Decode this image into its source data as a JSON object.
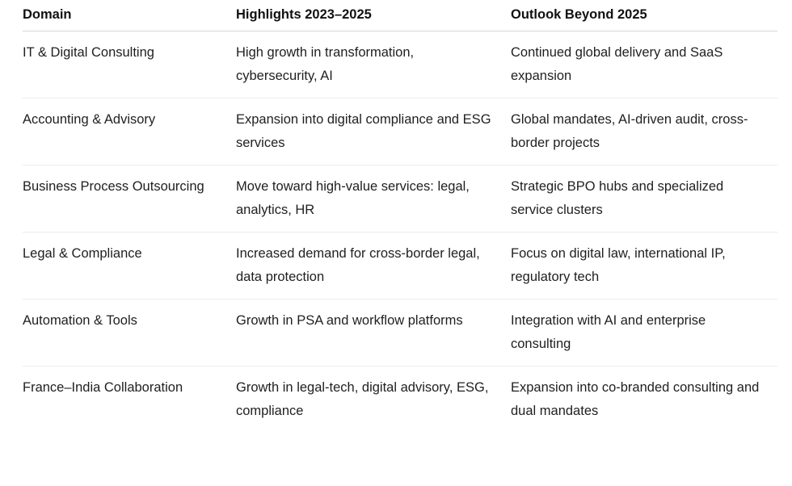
{
  "table": {
    "headers": [
      "Domain",
      "Highlights 2023–2025",
      "Outlook Beyond 2025"
    ],
    "rows": [
      [
        "IT & Digital Consulting",
        "High growth in transformation, cybersecurity, AI",
        "Continued global delivery and SaaS expansion"
      ],
      [
        "Accounting & Advisory",
        "Expansion into digital compliance and ESG services",
        "Global mandates, AI-driven audit, cross-border projects"
      ],
      [
        "Business Process Outsourcing",
        "Move toward high-value services: legal, analytics, HR",
        "Strategic BPO hubs and specialized service clusters"
      ],
      [
        "Legal & Compliance",
        "Increased demand for cross-border legal, data protection",
        "Focus on digital law, international IP, regulatory tech"
      ],
      [
        "Automation & Tools",
        "Growth in PSA and workflow platforms",
        "Integration with AI and enterprise consulting"
      ],
      [
        "France–India Collaboration",
        "Growth in legal-tech, digital advisory, ESG, compliance",
        "Expansion into co-branded consulting and dual mandates"
      ]
    ]
  }
}
